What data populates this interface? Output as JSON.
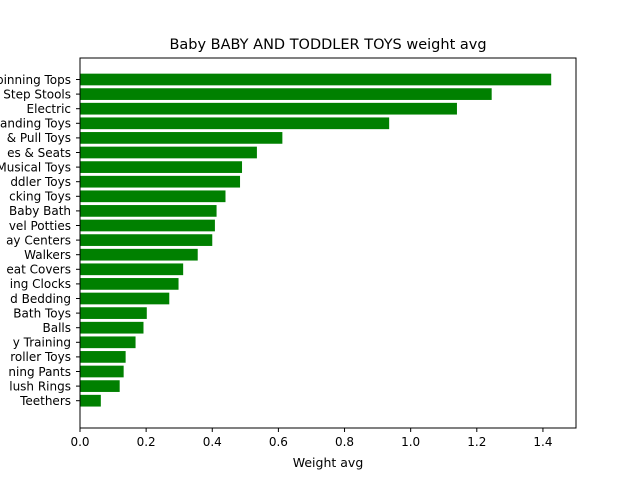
{
  "chart_data": {
    "type": "bar",
    "orientation": "horizontal",
    "title": "Baby BABY AND TODDLER TOYS weight avg",
    "xlabel": "Weight avg",
    "ylabel": "",
    "xlim": [
      0,
      1.5
    ],
    "xticks": [
      0.0,
      0.2,
      0.4,
      0.6,
      0.8,
      1.0,
      1.2,
      1.4
    ],
    "xtick_labels": [
      "0.0",
      "0.2",
      "0.4",
      "0.6",
      "0.8",
      "1.0",
      "1.2",
      "1.4"
    ],
    "grid": false,
    "bar_color": "#008000",
    "categories": [
      "Spinning Tops",
      "Step Stools",
      "Electric",
      "Stacking & Standing Toys",
      "Push & Pull Toys",
      "Baby Swings, Bouncers, Rockers, Potties & Seats",
      "Musical Toys",
      "Toddler Toys",
      "Rocking Toys",
      "Baby Bath",
      "Travel Potties",
      "Activity & Play Centers",
      "Walkers",
      "Car Seat Covers",
      "Learning Clocks",
      "Crib & Toddler Bed Bedding",
      "Bath Toys",
      "Balls",
      "Potty Training",
      "Stroller Toys",
      "Training Pants",
      "Teething & Plush Rings",
      "Teethers"
    ],
    "category_labels": [
      "Spinning Tops",
      "Step Stools",
      "Electric",
      "Standing Toys",
      "& Pull Toys",
      "es & Seats",
      "Musical Toys",
      "ddler Toys",
      "cking Toys",
      "Baby Bath",
      "vel Potties",
      "ay Centers",
      "Walkers",
      "eat Covers",
      "ing Clocks",
      "d Bedding",
      "Bath Toys",
      "Balls",
      "y Training",
      "roller Toys",
      "ning Pants",
      "lush Rings",
      "Teethers"
    ],
    "values": [
      1.425,
      1.245,
      1.14,
      0.935,
      0.612,
      0.535,
      0.49,
      0.484,
      0.44,
      0.413,
      0.408,
      0.4,
      0.356,
      0.312,
      0.298,
      0.27,
      0.202,
      0.192,
      0.168,
      0.138,
      0.132,
      0.12,
      0.063
    ]
  }
}
